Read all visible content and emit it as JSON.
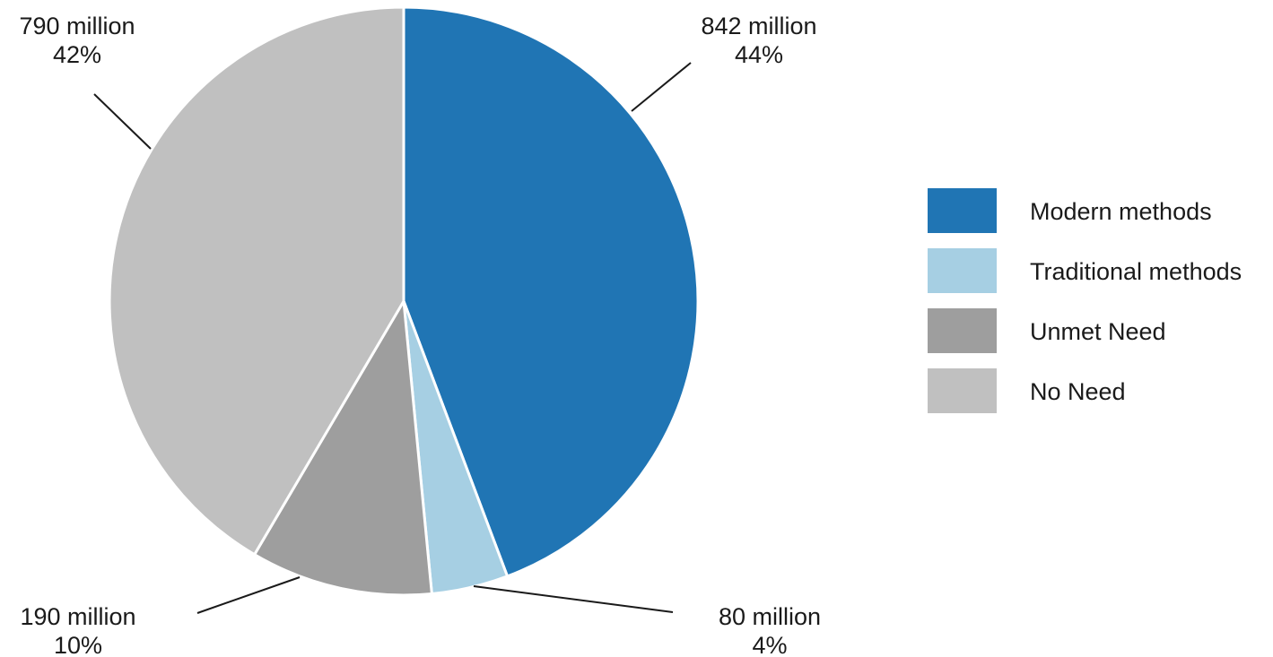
{
  "chart_data": {
    "type": "pie",
    "title": "",
    "slices": [
      {
        "name": "Modern methods",
        "value": 842,
        "value_label": "842 million",
        "percent_label": "44%",
        "color": "#2075b4"
      },
      {
        "name": "Traditional methods",
        "value": 80,
        "value_label": "80 million",
        "percent_label": "4%",
        "color": "#a6cfe3"
      },
      {
        "name": "Unmet Need",
        "value": 190,
        "value_label": "190 million",
        "percent_label": "10%",
        "color": "#9e9e9e"
      },
      {
        "name": "No Need",
        "value": 790,
        "value_label": "790 million",
        "percent_label": "42%",
        "color": "#c0c0c0"
      }
    ],
    "start_angle_deg": 0,
    "direction": "clockwise",
    "legend_position": "right",
    "slice_border_color": "#ffffff",
    "leader_line_color": "#1a1a1a"
  }
}
